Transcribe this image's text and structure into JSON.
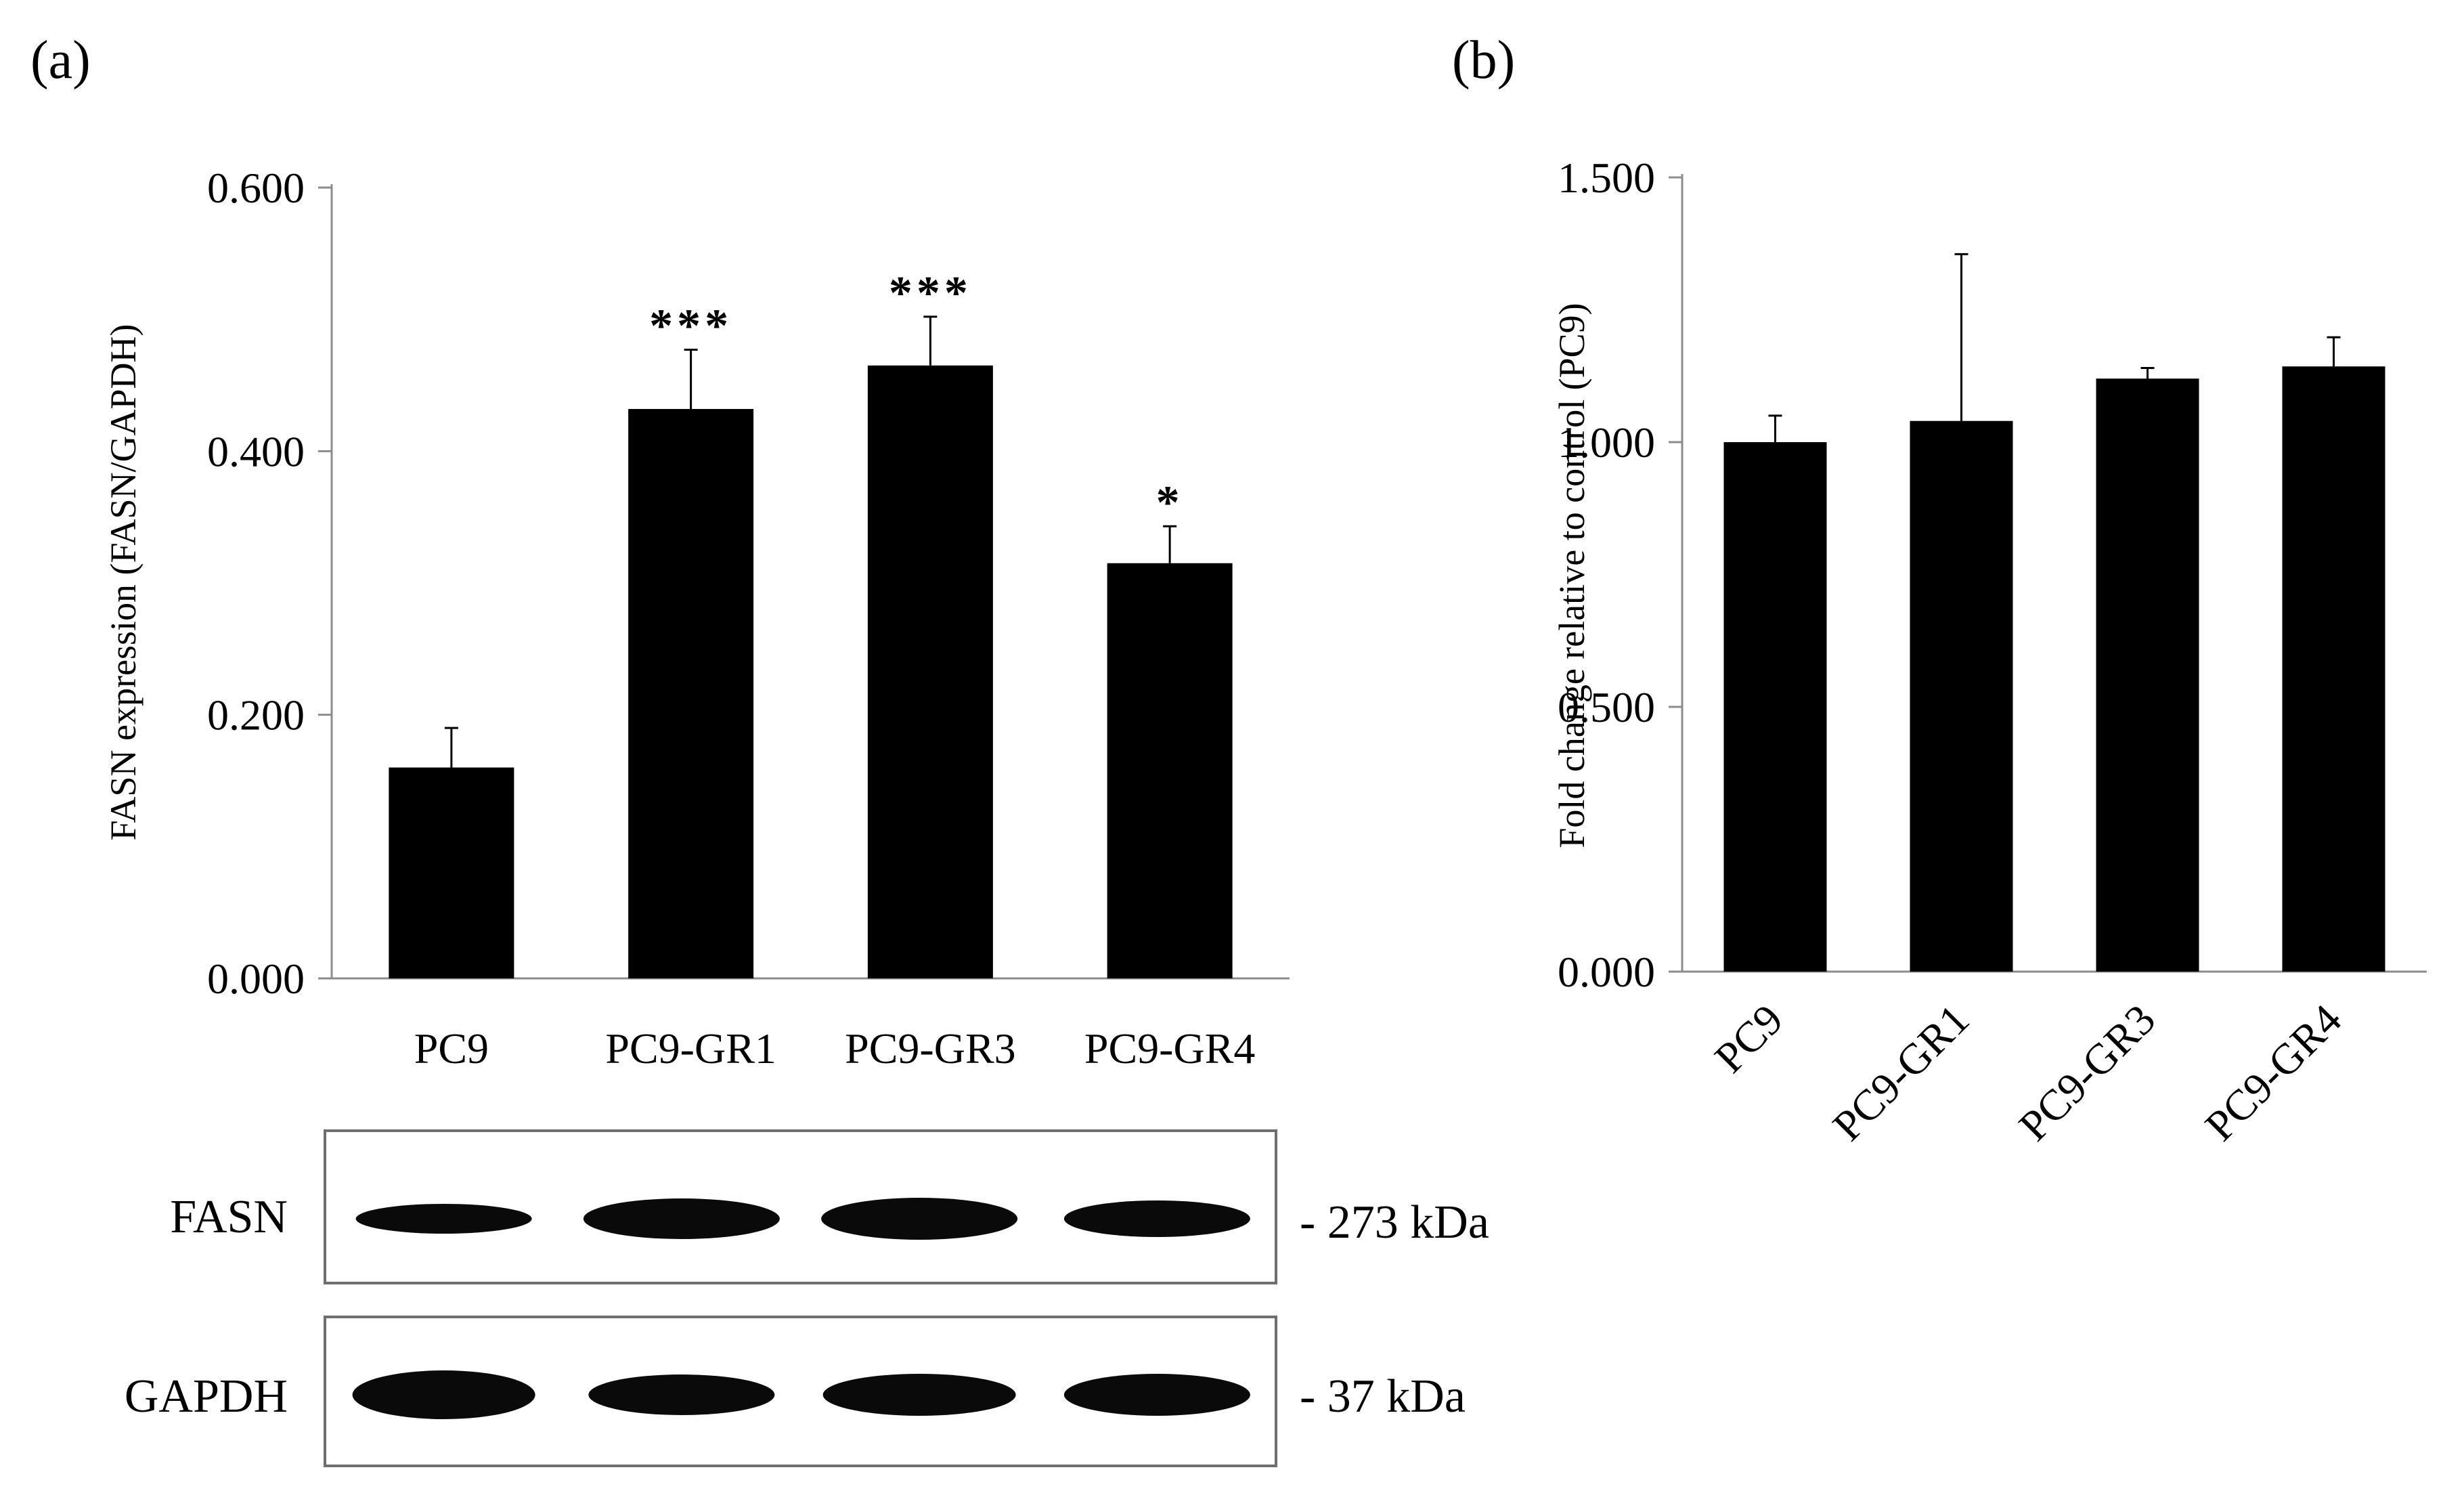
{
  "panels": {
    "a": {
      "label": "(a)"
    },
    "b": {
      "label": "(b)"
    }
  },
  "chart_data": [
    {
      "panel": "(a)",
      "type": "bar",
      "categories": [
        "PC9",
        "PC9-GR1",
        "PC9-GR3",
        "PC9-GR4"
      ],
      "values": [
        0.16,
        0.432,
        0.465,
        0.315
      ],
      "errors": [
        0.03,
        0.045,
        0.037,
        0.028
      ],
      "significance": [
        "",
        "***",
        "***",
        "*"
      ],
      "title": "",
      "xlabel": "",
      "ylabel": "FASN expression (FASN/GAPDH)",
      "ylim": [
        0,
        0.6
      ],
      "yticks": [
        "0.000",
        "0.200",
        "0.400",
        "0.600"
      ],
      "bar_color": "#000000",
      "grid": false,
      "legend": "none"
    },
    {
      "panel": "(b)",
      "type": "bar",
      "categories": [
        "PC9",
        "PC9-GR1",
        "PC9-GR3",
        "PC9-GR4"
      ],
      "values": [
        1.0,
        1.04,
        1.12,
        1.143
      ],
      "errors": [
        0.05,
        0.315,
        0.02,
        0.055
      ],
      "title": "",
      "xlabel": "",
      "ylabel": "Fold change relative to control (PC9)",
      "ylim": [
        0,
        1.5
      ],
      "yticks": [
        "0.000",
        "0.500",
        "1.000",
        "1.500"
      ],
      "xtick_rotation": "45 degrees",
      "bar_color": "#000000",
      "grid": false,
      "legend": "none"
    }
  ],
  "blot": {
    "rows": [
      {
        "name": "FASN",
        "size": "- 273 kDa"
      },
      {
        "name": "GAPDH",
        "size": "- 37 kDa"
      }
    ],
    "lanes": 4
  }
}
